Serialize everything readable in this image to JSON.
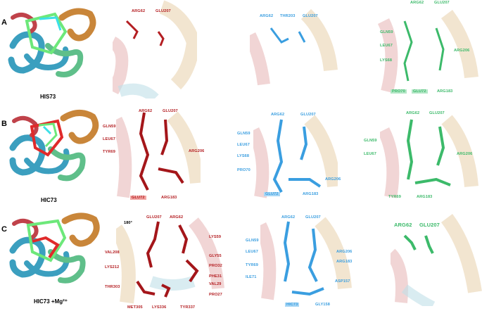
{
  "rows": [
    {
      "letter": "A",
      "caption": "HIS73",
      "panels": [
        {
          "labels": [
            "ARG62",
            "GLU207"
          ]
        },
        {
          "labels": [
            "ARG62",
            "THR203",
            "GLU207"
          ]
        },
        {
          "labels": [
            "ARG62",
            "GLU207",
            "GLN59",
            "LEU67",
            "LYS68",
            "ARG206",
            "PRO70",
            "GLU72",
            "ARG183"
          ]
        }
      ]
    },
    {
      "letter": "B",
      "caption": "HIC73",
      "panels": [
        {
          "labels": [
            "ARG62",
            "GLU207",
            "GLN59",
            "LEU67",
            "TYR69",
            "ARG206",
            "GLU72",
            "ARG183"
          ]
        },
        {
          "labels": [
            "ARG62",
            "GLU207",
            "GLN59",
            "LEU67",
            "LYS68",
            "PRO70",
            "ARG206",
            "GLU72",
            "ARG183"
          ]
        },
        {
          "labels": [
            "ARG62",
            "GLU207",
            "GLN59",
            "LEU67",
            "ARG206",
            "TYR69",
            "ARG183"
          ]
        }
      ]
    },
    {
      "letter": "C",
      "caption": "HIC73 +Mg²⁺",
      "rotation": "180°",
      "panels": [
        {
          "labels": [
            "GLU207",
            "ARG62",
            "LYS59",
            "VAL208",
            "GLY55",
            "PRO32",
            "LYS212",
            "PHE31",
            "VAL29",
            "THR303",
            "PRO27",
            "MET305",
            "LYS336",
            "TYR337"
          ]
        },
        {
          "labels": [
            "ARG62",
            "GLU207",
            "GLN59",
            "LEU67",
            "ARG206",
            "ARG183",
            "TYR69",
            "ILE71",
            "ASP157",
            "HIC73",
            "GLY158"
          ]
        },
        {
          "labels": [
            "ARG62",
            "GLU207"
          ]
        }
      ]
    }
  ],
  "colors": {
    "red": "#b41e22",
    "blue": "#3a9ee0",
    "green": "#3cba6a",
    "helix_blue": "#3b9fbf",
    "helix_orange": "#c9863a",
    "helix_green": "#5fbf8a",
    "helix_red": "#c0424a"
  }
}
